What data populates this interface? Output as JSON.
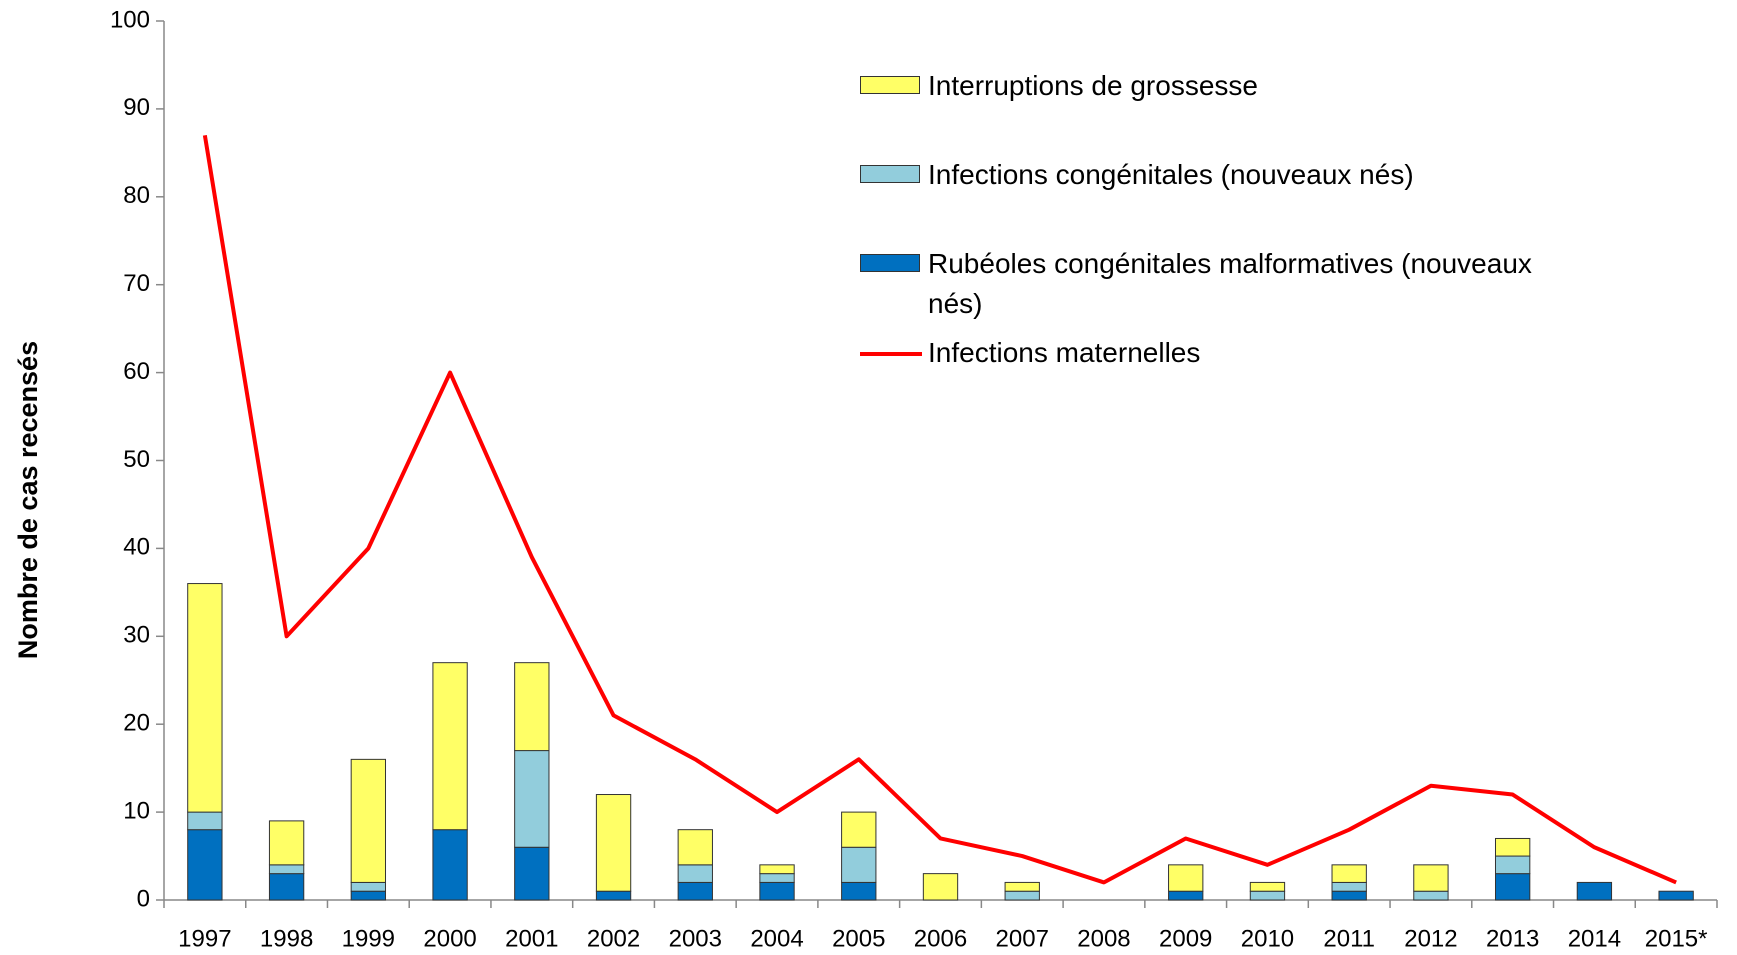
{
  "chart_data": {
    "type": "bar",
    "stacked": true,
    "y_label": "Nombre de cas recensés",
    "categories": [
      "1997",
      "1998",
      "1999",
      "2000",
      "2001",
      "2002",
      "2003",
      "2004",
      "2005",
      "2006",
      "2007",
      "2008",
      "2009",
      "2010",
      "2011",
      "2012",
      "2013",
      "2014",
      "2015*"
    ],
    "series": [
      {
        "name": "Rubéoles congénitales malformatives (nouveaux nés)",
        "color": "#0070c0",
        "values": [
          8,
          3,
          1,
          8,
          6,
          1,
          2,
          2,
          2,
          0,
          0,
          0,
          1,
          0,
          1,
          0,
          3,
          2,
          1
        ]
      },
      {
        "name": "Infections congénitales (nouveaux nés)",
        "color": "#92cddc",
        "values": [
          2,
          1,
          1,
          0,
          11,
          0,
          2,
          1,
          4,
          0,
          1,
          0,
          0,
          1,
          1,
          1,
          2,
          0,
          0
        ]
      },
      {
        "name": "Interruptions de grossesse",
        "color": "#ffff66",
        "values": [
          26,
          5,
          14,
          19,
          10,
          11,
          4,
          1,
          4,
          3,
          1,
          0,
          3,
          1,
          2,
          3,
          2,
          0,
          0
        ]
      },
      {
        "name": "Infections maternelles",
        "type": "line",
        "color": "#ff0000",
        "values": [
          87,
          30,
          40,
          60,
          39,
          21,
          16,
          10,
          16,
          7,
          5,
          2,
          7,
          4,
          8,
          13,
          12,
          6,
          2
        ]
      }
    ],
    "ylim": [
      0,
      100
    ],
    "yticks": [
      0,
      10,
      20,
      30,
      40,
      50,
      60,
      70,
      80,
      90,
      100
    ]
  }
}
